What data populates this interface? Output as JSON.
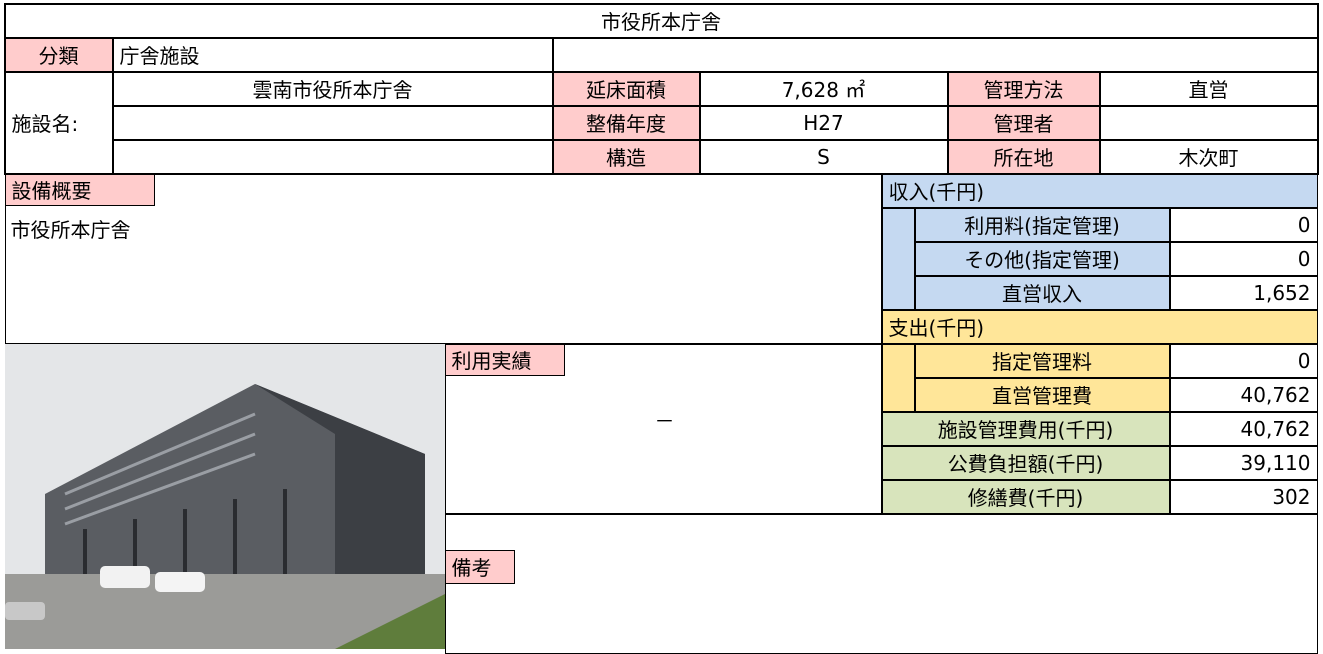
{
  "title": "市役所本庁舎",
  "classification": {
    "label": "分類",
    "value": "庁舎施設"
  },
  "facility": {
    "label": "施設名:",
    "names": [
      "雲南市役所本庁舎"
    ]
  },
  "details_left": [
    {
      "label": "延床面積",
      "value": "7,628 ㎡"
    },
    {
      "label": "整備年度",
      "value": "H27"
    },
    {
      "label": "構造",
      "value": "S"
    }
  ],
  "details_right": [
    {
      "label": "管理方法",
      "value": "直営"
    },
    {
      "label": "管理者"
    },
    {
      "label": "所在地",
      "value": "木次町"
    }
  ],
  "equipment": {
    "label": "設備概要",
    "text": "市役所本庁舎"
  },
  "income": {
    "label": "収入(千円)",
    "rows": [
      {
        "label": "利用料(指定管理)",
        "value": "0"
      },
      {
        "label": "その他(指定管理)",
        "value": "0"
      },
      {
        "label": "直営収入",
        "value": "1,652"
      }
    ]
  },
  "expense": {
    "label": "支出(千円)",
    "rows": [
      {
        "label": "指定管理料",
        "value": "0"
      },
      {
        "label": "直営管理費",
        "value": "40,762"
      }
    ]
  },
  "totals": [
    {
      "label": "施設管理費用(千円)",
      "value": "40,762"
    },
    {
      "label": "公費負担額(千円)",
      "value": "39,110"
    },
    {
      "label": "修繕費(千円)",
      "value": "302"
    }
  ],
  "usage": {
    "label": "利用実績",
    "text": "－"
  },
  "remarks": {
    "label": "備考"
  }
}
